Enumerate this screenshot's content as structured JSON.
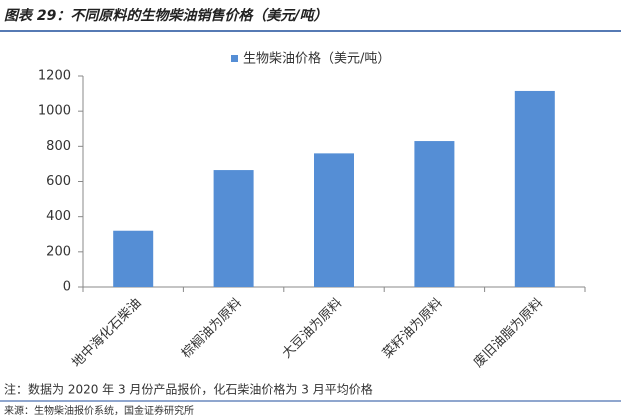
{
  "chart_data": {
    "type": "bar",
    "title": "图表 29：不同原料的生物柴油销售价格（美元/吨）",
    "categories": [
      "地中海化石柴油",
      "棕榈油为原料",
      "大豆油为原料",
      "菜籽油为原料",
      "废旧油脂为原料"
    ],
    "series": [
      {
        "name": "生物柴油价格（美元/吨）",
        "color": "#558ed5",
        "values": [
          320,
          665,
          760,
          830,
          1115
        ]
      }
    ],
    "ylim": [
      0,
      1200
    ],
    "yticks": [
      0,
      200,
      400,
      600,
      800,
      1000,
      1200
    ],
    "grid": false,
    "legend": "top",
    "note": "注：数据为 2020 年 3 月份产品报价，化石柴油价格为 3 月平均价格",
    "source": "来源：生物柴油报价系统，国金证券研究所"
  }
}
